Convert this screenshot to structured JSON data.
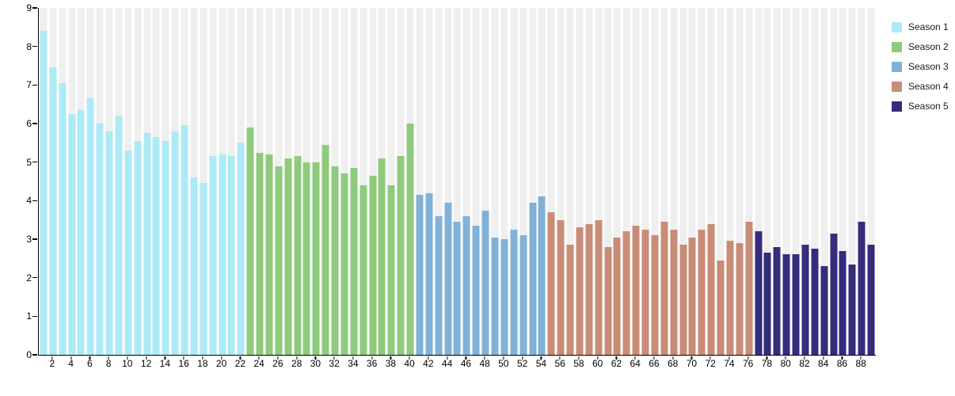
{
  "chart_data": {
    "type": "bar",
    "title": "",
    "xlabel": "",
    "ylabel": "",
    "x_unit": "episode",
    "x_range": [
      1,
      89
    ],
    "ylim": [
      0,
      9
    ],
    "grid": false,
    "plot_background": "#ffffff",
    "background_bars": {
      "height": 9,
      "color": "#efefef"
    },
    "axis_color": "#000000",
    "legend_position": "top-right",
    "yticks": [
      "0",
      "1",
      "2",
      "3",
      "4",
      "5",
      "6",
      "7",
      "8",
      "9"
    ],
    "xtick_labels": [
      "2",
      "4",
      "6",
      "8",
      "10",
      "12",
      "14",
      "16",
      "18",
      "20",
      "22",
      "24",
      "26",
      "28",
      "30",
      "32",
      "34",
      "36",
      "38",
      "40",
      "42",
      "44",
      "46",
      "48",
      "50",
      "52",
      "54",
      "56",
      "58",
      "60",
      "62",
      "64",
      "66",
      "68",
      "70",
      "72",
      "74",
      "76",
      "78",
      "80",
      "82",
      "84",
      "86",
      "88"
    ],
    "series": [
      {
        "name": "Season 1",
        "color": "#aceaf5",
        "first_episode": 1,
        "values": [
          8.4,
          7.45,
          7.05,
          6.25,
          6.35,
          6.65,
          6.0,
          5.8,
          6.2,
          5.3,
          5.55,
          5.75,
          5.65,
          5.55,
          5.8,
          5.95,
          4.6,
          4.45,
          5.15,
          5.2,
          5.15,
          5.5
        ]
      },
      {
        "name": "Season 2",
        "color": "#8ecb7c",
        "first_episode": 23,
        "values": [
          5.9,
          5.25,
          5.2,
          4.9,
          5.1,
          5.15,
          5.0,
          5.0,
          5.45,
          4.9,
          4.7,
          4.85,
          4.4,
          4.65,
          5.1,
          4.4,
          5.15,
          6.0
        ]
      },
      {
        "name": "Season 3",
        "color": "#80b1d8",
        "first_episode": 41,
        "values": [
          4.15,
          4.2,
          3.6,
          3.95,
          3.45,
          3.6,
          3.35,
          3.75,
          3.05,
          3.0,
          3.25,
          3.1,
          3.95,
          4.1
        ]
      },
      {
        "name": "Season 4",
        "color": "#c98c76",
        "first_episode": 55,
        "values": [
          3.7,
          3.5,
          2.85,
          3.3,
          3.4,
          3.5,
          2.8,
          3.05,
          3.2,
          3.35,
          3.25,
          3.1,
          3.45,
          3.25,
          2.85,
          3.05,
          3.25,
          3.4,
          2.45,
          2.95,
          2.9,
          3.45
        ]
      },
      {
        "name": "Season 5",
        "color": "#352c7b",
        "first_episode": 77,
        "values": [
          3.2,
          2.65,
          2.8,
          2.6,
          2.6,
          2.85,
          2.75,
          2.3,
          3.15,
          2.7,
          2.35,
          3.45,
          2.85
        ]
      }
    ]
  }
}
